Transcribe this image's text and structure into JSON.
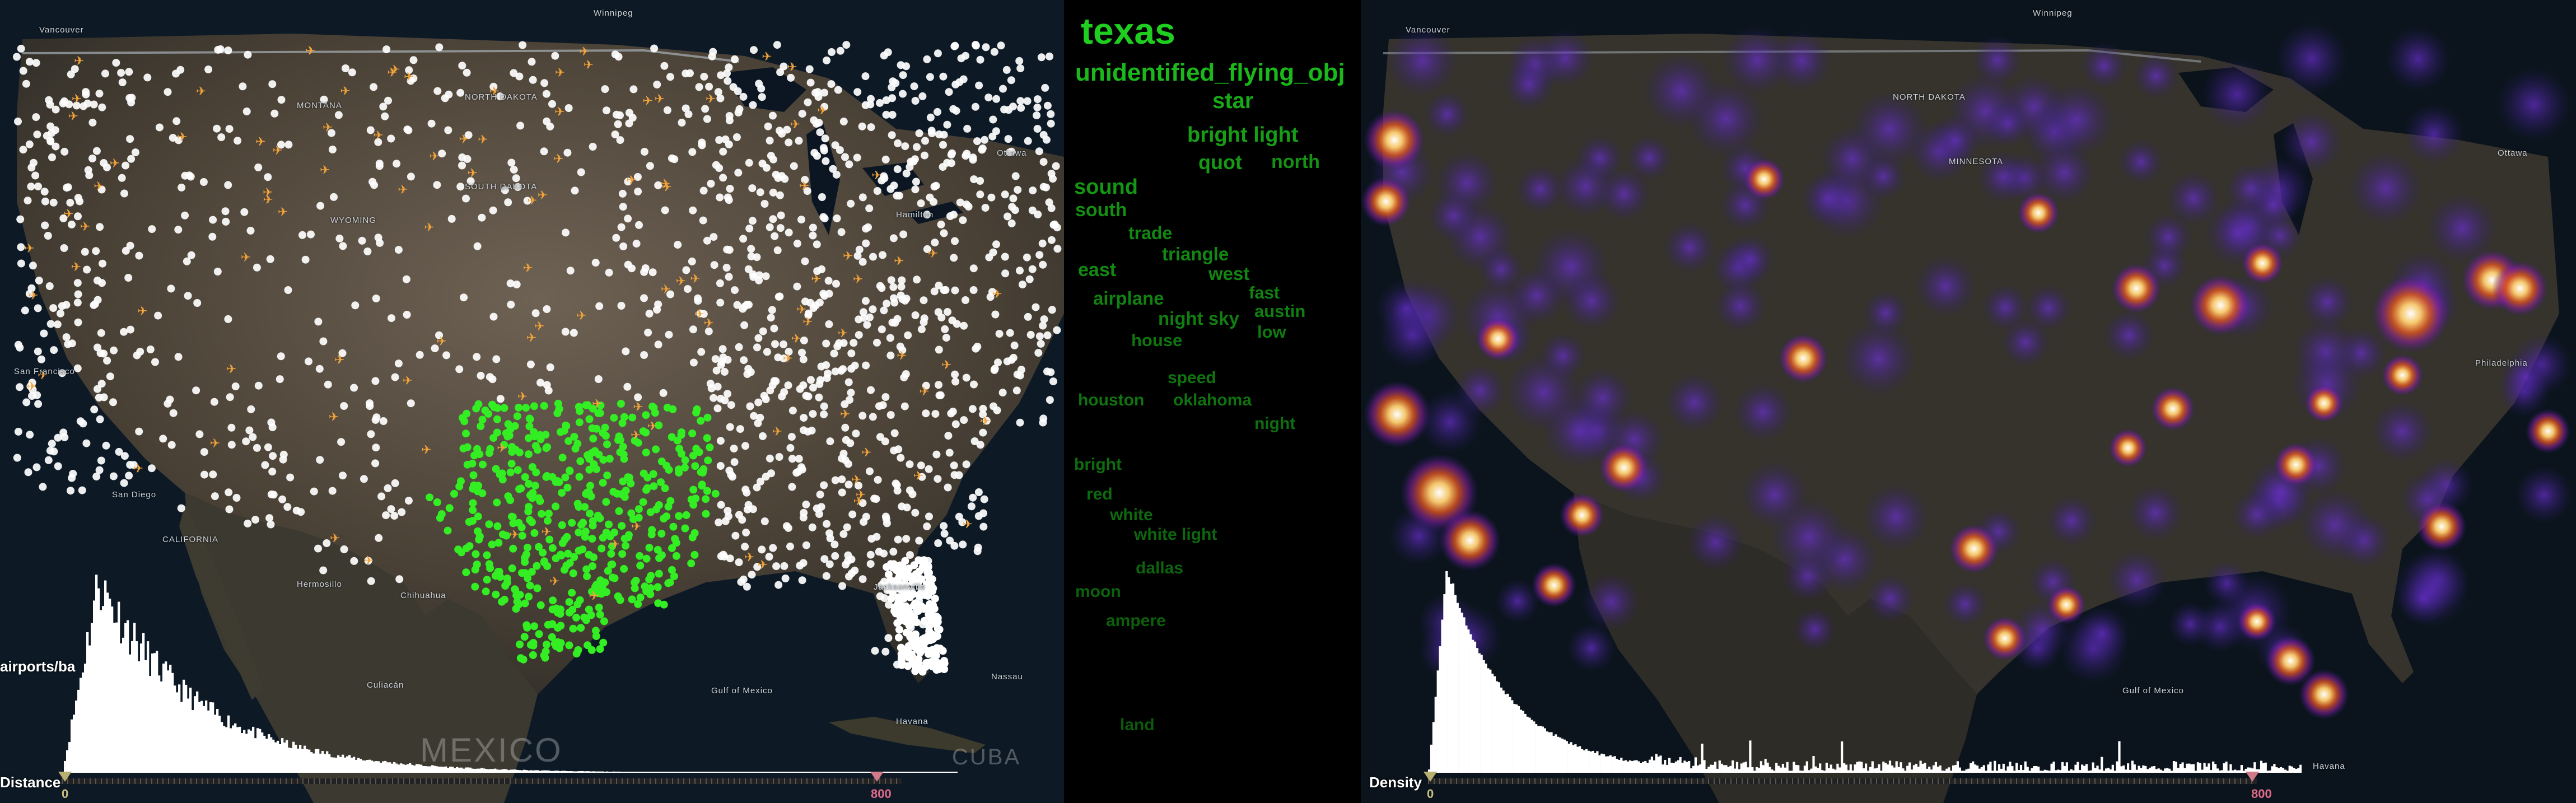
{
  "left_map": {
    "places": [
      "Vancouver",
      "Winnipeg",
      "MONTANA",
      "NORTH DAKOTA",
      "SOUTH DAKOTA",
      "WYOMING",
      "San Francisco",
      "San Diego",
      "CALIFORNIA",
      "Chihuahua",
      "Hermosillo",
      "Culiacán",
      "Ottawa",
      "Hamilton",
      "Jacksonville",
      "Nassau",
      "Havana",
      "Gulf of Mexico"
    ],
    "country_label": "MEXICO",
    "cuba_label": "CUBA",
    "histogram_label": "Distance",
    "side_label": "airports/ba",
    "slider": {
      "min": "0",
      "max": "800"
    },
    "highlight_state": "Texas"
  },
  "word_cloud": {
    "words": [
      {
        "text": "texas",
        "size": 66,
        "color": "#1fcf1f"
      },
      {
        "text": "unidentified_flying_obj",
        "size": 44,
        "color": "#1bb81b"
      },
      {
        "text": "star",
        "size": 40,
        "color": "#18a818"
      },
      {
        "text": "bright light",
        "size": 38,
        "color": "#169e16"
      },
      {
        "text": "quot",
        "size": 36,
        "color": "#169a16"
      },
      {
        "text": "north",
        "size": 34,
        "color": "#149214"
      },
      {
        "text": "sound",
        "size": 38,
        "color": "#149614"
      },
      {
        "text": "south",
        "size": 34,
        "color": "#138f13"
      },
      {
        "text": "trade",
        "size": 32,
        "color": "#128812"
      },
      {
        "text": "triangle",
        "size": 33,
        "color": "#128812"
      },
      {
        "text": "east",
        "size": 34,
        "color": "#128a12"
      },
      {
        "text": "west",
        "size": 33,
        "color": "#128612"
      },
      {
        "text": "fast",
        "size": 31,
        "color": "#118211"
      },
      {
        "text": "airplane",
        "size": 33,
        "color": "#118211"
      },
      {
        "text": "austin",
        "size": 31,
        "color": "#107e10"
      },
      {
        "text": "night sky",
        "size": 33,
        "color": "#107e10"
      },
      {
        "text": "low",
        "size": 31,
        "color": "#107a10"
      },
      {
        "text": "house",
        "size": 31,
        "color": "#0f760f"
      },
      {
        "text": "speed",
        "size": 30,
        "color": "#0f740f"
      },
      {
        "text": "houston",
        "size": 30,
        "color": "#0f740f"
      },
      {
        "text": "oklahoma",
        "size": 30,
        "color": "#0f720f"
      },
      {
        "text": "night",
        "size": 30,
        "color": "#0e6e0e"
      },
      {
        "text": "bright",
        "size": 30,
        "color": "#0e6e0e"
      },
      {
        "text": "red",
        "size": 30,
        "color": "#0d6a0d"
      },
      {
        "text": "white",
        "size": 30,
        "color": "#0d6a0d"
      },
      {
        "text": "white light",
        "size": 30,
        "color": "#0d680d"
      },
      {
        "text": "dallas",
        "size": 30,
        "color": "#0c640c"
      },
      {
        "text": "moon",
        "size": 30,
        "color": "#0c620c"
      },
      {
        "text": "ampere",
        "size": 30,
        "color": "#0c600c"
      },
      {
        "text": "land",
        "size": 30,
        "color": "#0b5a0b"
      }
    ]
  },
  "right_map": {
    "places": [
      "Vancouver",
      "Winnipeg",
      "NORTH DAKOTA",
      "MINNESOTA",
      "Ottawa",
      "Philadelphia",
      "Havana",
      "Gulf of Mexico"
    ],
    "histogram_label": "Density",
    "slider": {
      "min": "0",
      "max": "800"
    }
  },
  "colors": {
    "point_default": "#ffffff",
    "point_highlight": "#33ee22",
    "airport_icon": "#f2a33a",
    "heat_low": "#3b1d8a",
    "heat_mid": "#e0561f",
    "heat_high": "#ffffff"
  },
  "icons": [
    "airport-icon",
    "ufo-sighting-point",
    "heat-spot"
  ]
}
